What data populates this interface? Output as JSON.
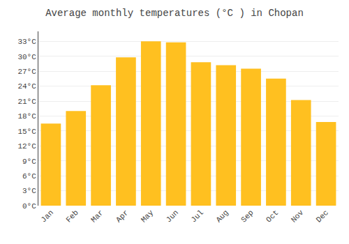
{
  "chart_data": {
    "type": "bar",
    "title": "Average monthly temperatures (°C ) in Chopan",
    "categories": [
      "Jan",
      "Feb",
      "Mar",
      "Apr",
      "May",
      "Jun",
      "Jul",
      "Aug",
      "Sep",
      "Oct",
      "Nov",
      "Dec"
    ],
    "values": [
      16.5,
      19.0,
      24.2,
      29.8,
      33.0,
      32.8,
      28.8,
      28.2,
      27.5,
      25.5,
      21.2,
      16.8
    ],
    "color": "#FFC020",
    "ylim": [
      0,
      35
    ],
    "yticks": [
      {
        "value": 0,
        "label": "0°C"
      },
      {
        "value": 3,
        "label": "3°C"
      },
      {
        "value": 6,
        "label": "6°C"
      },
      {
        "value": 9,
        "label": "9°C"
      },
      {
        "value": 12,
        "label": "12°C"
      },
      {
        "value": 15,
        "label": "15°C"
      },
      {
        "value": 18,
        "label": "18°C"
      },
      {
        "value": 21,
        "label": "21°C"
      },
      {
        "value": 24,
        "label": "24°C"
      },
      {
        "value": 27,
        "label": "27°C"
      },
      {
        "value": 30,
        "label": "30°C"
      },
      {
        "value": 33,
        "label": "33°C"
      }
    ],
    "grid": true
  }
}
